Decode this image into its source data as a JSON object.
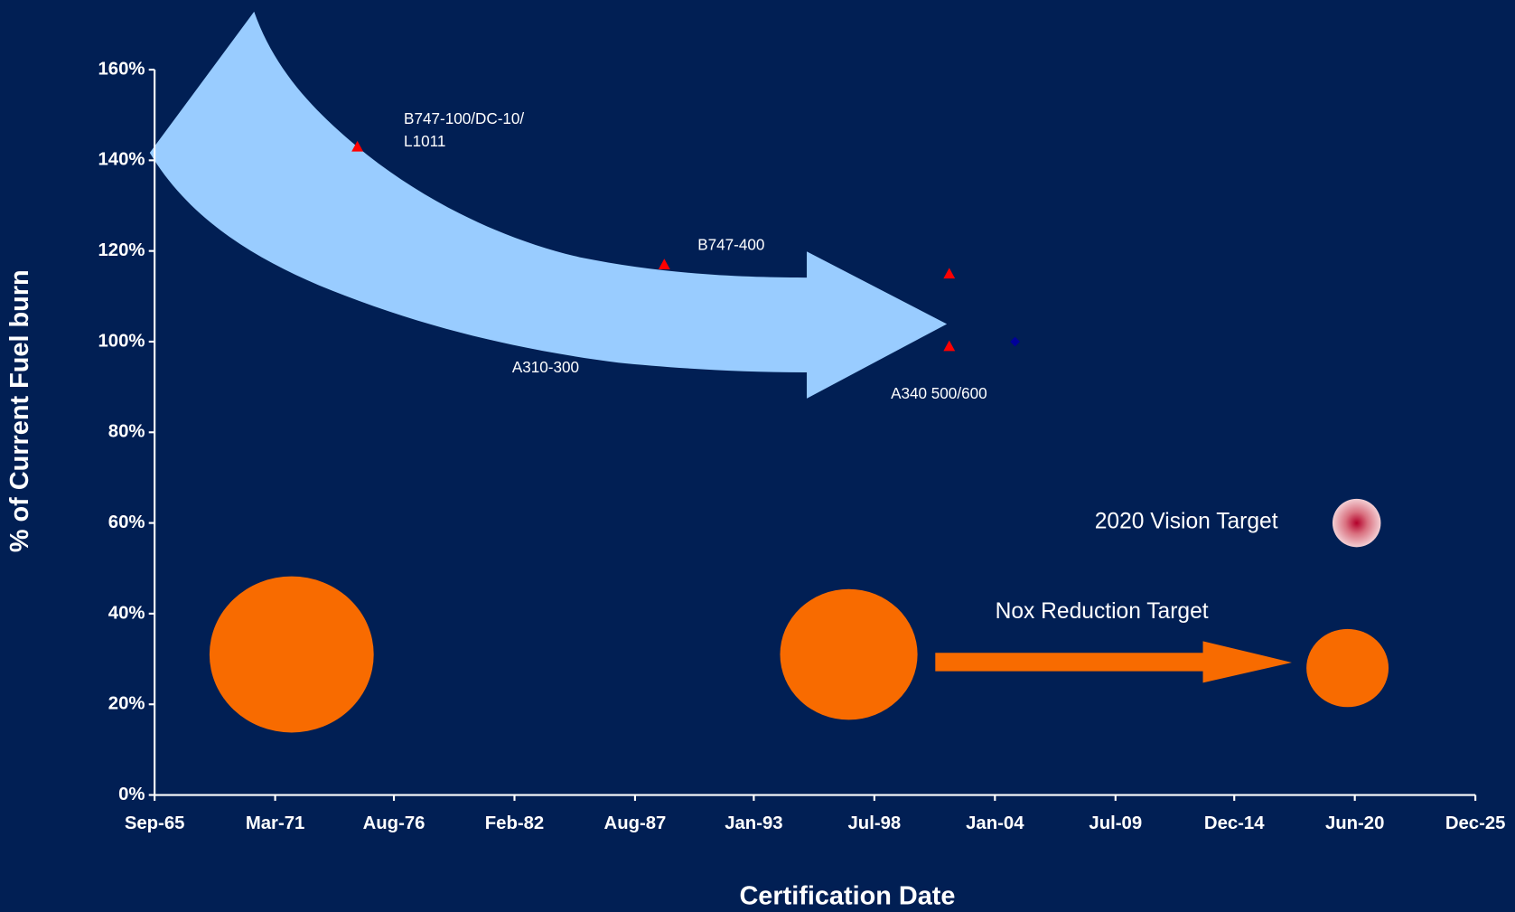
{
  "chart_data": {
    "type": "scatter",
    "xlabel": "Certification Date",
    "ylabel": "% of Current Fuel burn",
    "xlim": [
      "1965-09",
      "2025-12"
    ],
    "xticks": [
      {
        "value": "1965-09",
        "label": "Sep-65"
      },
      {
        "value": "1971-03",
        "label": "Mar-71"
      },
      {
        "value": "1976-08",
        "label": "Aug-76"
      },
      {
        "value": "1982-02",
        "label": "Feb-82"
      },
      {
        "value": "1987-08",
        "label": "Aug-87"
      },
      {
        "value": "1993-01",
        "label": "Jan-93"
      },
      {
        "value": "1998-07",
        "label": "Jul-98"
      },
      {
        "value": "2004-01",
        "label": "Jan-04"
      },
      {
        "value": "2009-07",
        "label": "Jul-09"
      },
      {
        "value": "2014-12",
        "label": "Dec-14"
      },
      {
        "value": "2020-06",
        "label": "Jun-20"
      },
      {
        "value": "2025-12",
        "label": "Dec-25"
      }
    ],
    "ylim": [
      0,
      160
    ],
    "yticks": [
      {
        "value": 0,
        "label": "0%"
      },
      {
        "value": 20,
        "label": "20%"
      },
      {
        "value": 40,
        "label": "40%"
      },
      {
        "value": 60,
        "label": "60%"
      },
      {
        "value": 80,
        "label": "80%"
      },
      {
        "value": 100,
        "label": "100%"
      },
      {
        "value": 120,
        "label": "120%"
      },
      {
        "value": 140,
        "label": "140%"
      },
      {
        "value": 160,
        "label": "160%"
      }
    ],
    "series": [
      {
        "marker": "triangle",
        "color": "#ff0000",
        "x": [
          "1974-12",
          "1988-12",
          "2001-12",
          "2001-12"
        ],
        "values": [
          143,
          117,
          115,
          99
        ]
      },
      {
        "marker": "diamond",
        "color": "#000099",
        "x": [
          "2004-12"
        ],
        "values": [
          100
        ]
      },
      {
        "marker": "bubble",
        "color": "#f86b00",
        "x": [
          "1971-12",
          "1997-05",
          "2020-02"
        ],
        "values": [
          31,
          31,
          28
        ],
        "sizes": [
          100,
          70,
          25
        ]
      },
      {
        "marker": "target",
        "color": "#b3002a",
        "x": [
          "2020-07"
        ],
        "values": [
          60
        ]
      }
    ],
    "annotations": [
      "B747-100/DC-10/",
      "L1011",
      "B747-400",
      "A310-300",
      "A340 500/600",
      "2020 Vision Target",
      "Nox Reduction Target"
    ]
  }
}
